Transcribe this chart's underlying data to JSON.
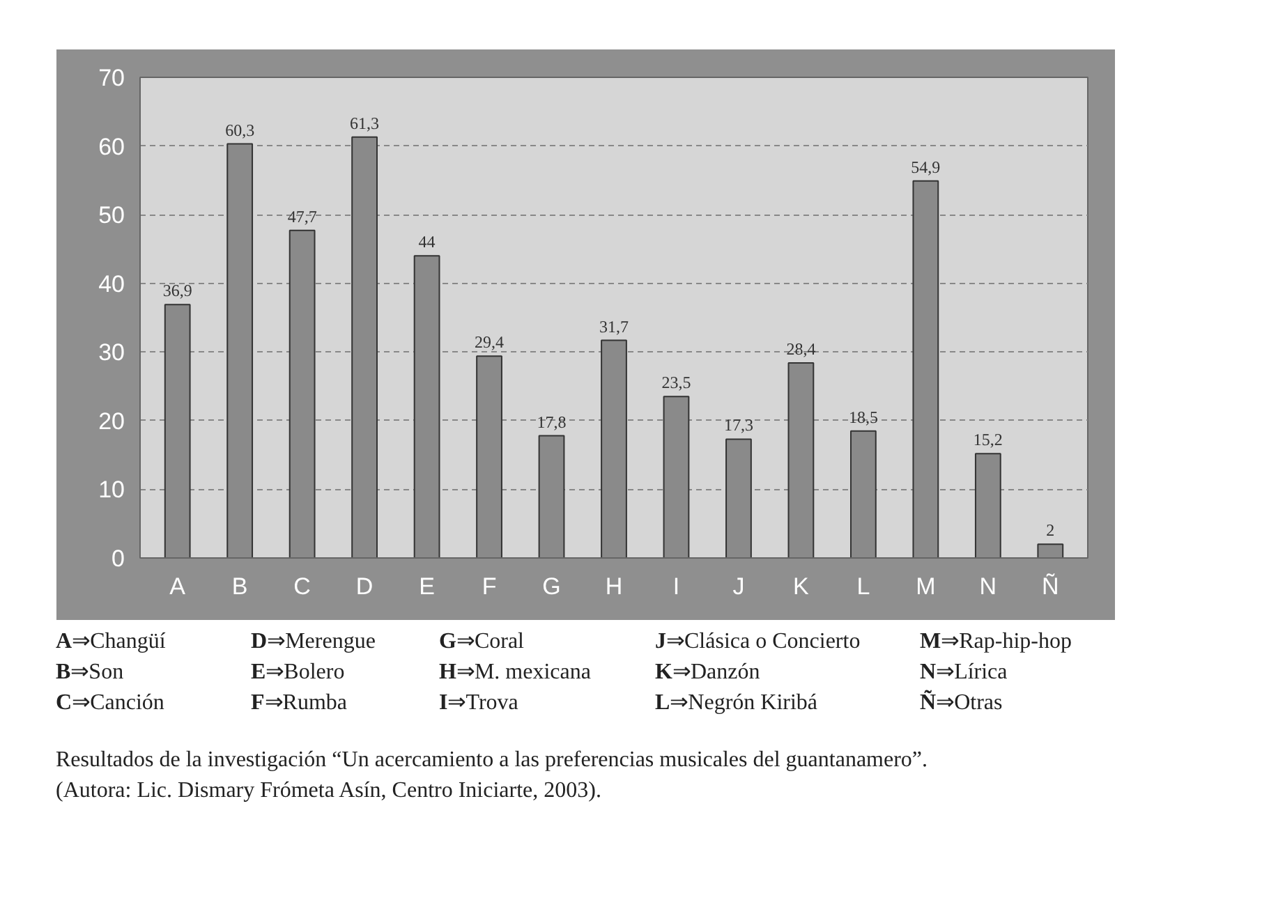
{
  "chart_data": {
    "type": "bar",
    "categories": [
      "A",
      "B",
      "C",
      "D",
      "E",
      "F",
      "G",
      "H",
      "I",
      "J",
      "K",
      "L",
      "M",
      "N",
      "Ñ"
    ],
    "values": [
      36.9,
      60.3,
      47.7,
      61.3,
      44,
      29.4,
      17.8,
      31.7,
      23.5,
      17.3,
      28.4,
      18.5,
      54.9,
      15.2,
      2
    ],
    "value_labels": [
      "36,9",
      "60,3",
      "47,7",
      "61,3",
      "44",
      "29,4",
      "17,8",
      "31,7",
      "23,5",
      "17,3",
      "28,4",
      "18,5",
      "54,9",
      "15,2",
      "2"
    ],
    "color": "#8a8a8a",
    "ylim": [
      0,
      70
    ],
    "yticks": [
      0,
      10,
      20,
      30,
      40,
      50,
      60,
      70
    ],
    "grid": "y",
    "annotations": [
      "A⇒Changüí",
      "B⇒Son",
      "C⇒Canción",
      "D⇒Merengue",
      "E⇒Bolero",
      "F⇒Rumba",
      "G⇒Coral",
      "H⇒M. mexicana",
      "I⇒Trova",
      "J⇒Clásica o Concierto",
      "K⇒Danzón",
      "L⇒Negrón Kiribá",
      "M⇒Rap-hip-hop",
      "N⇒Lírica",
      "Ñ⇒Otras",
      "Resultados de la investigación “Un acercamiento a las preferencias musicales del guantanamero”.",
      "(Autora: Lic. Dismary Frómeta Asín, Centro Iniciarte, 2003)."
    ]
  }
}
